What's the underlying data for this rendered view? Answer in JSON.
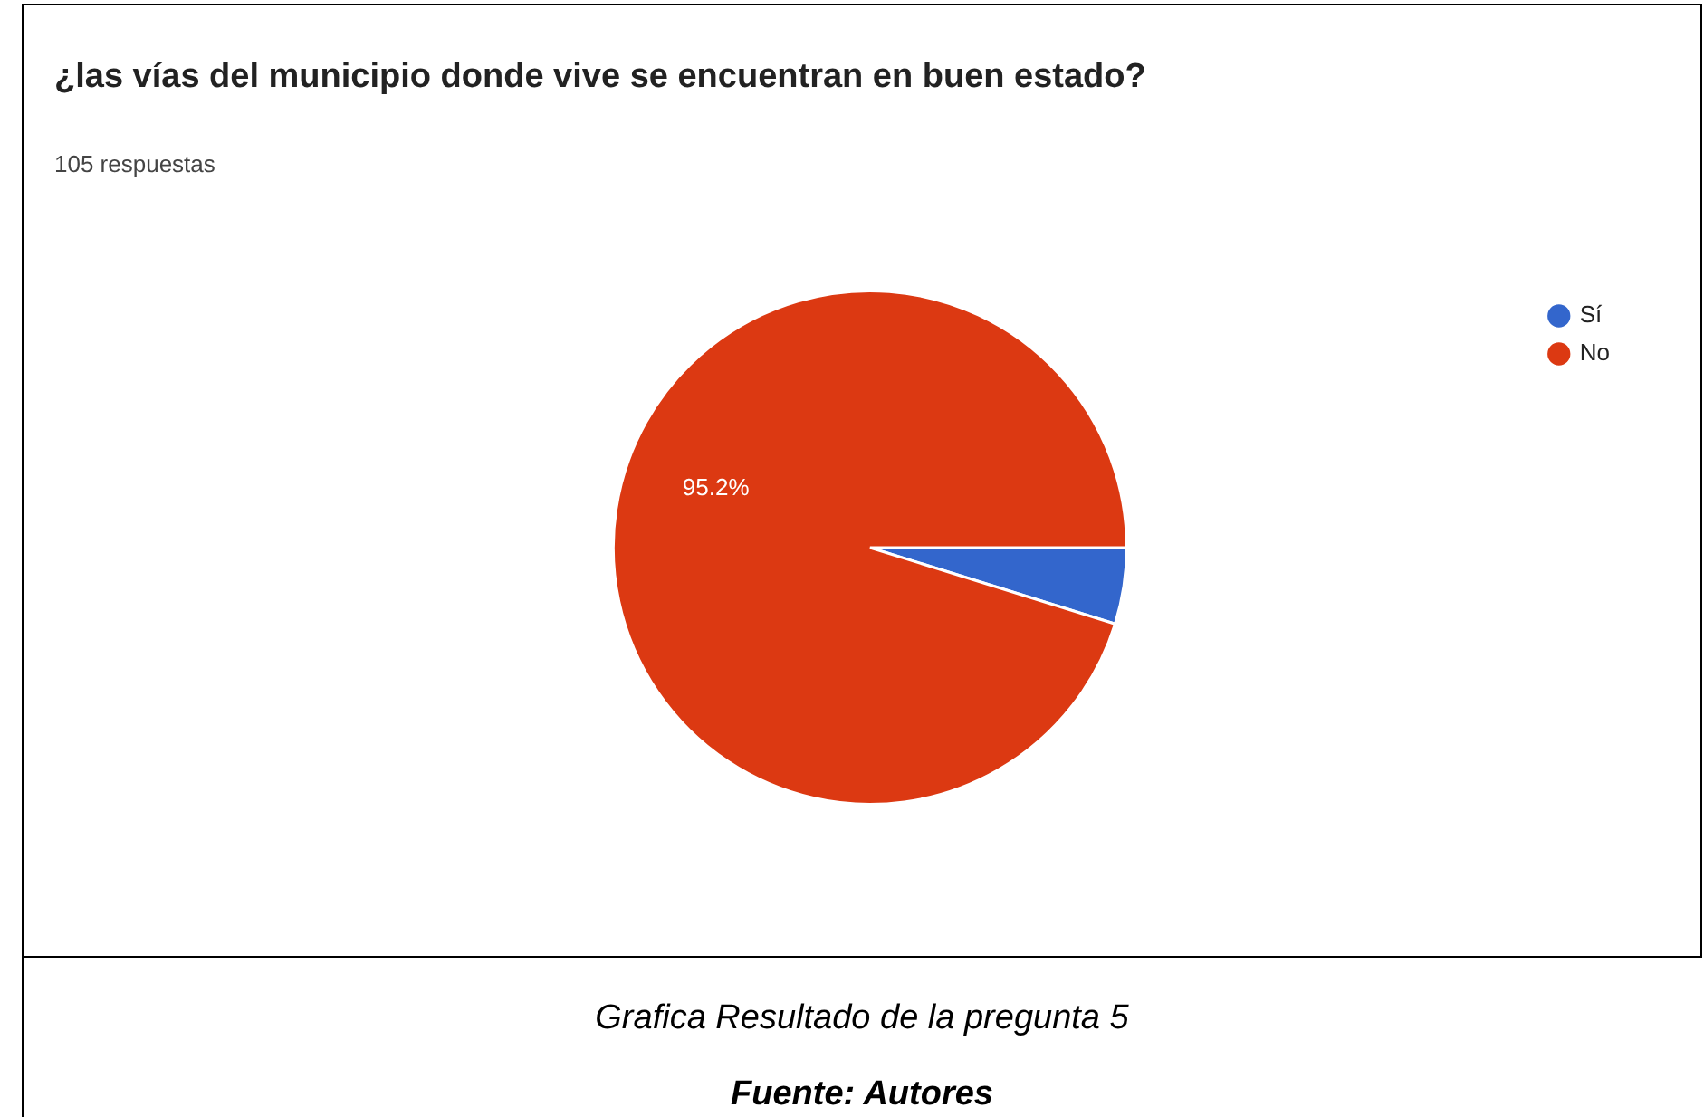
{
  "chart_data": {
    "type": "pie",
    "title": "¿las vías del municipio donde vive se encuentran en buen estado?",
    "subtitle": "105 respuestas",
    "categories": [
      "Sí",
      "No"
    ],
    "values": [
      4.8,
      95.2
    ],
    "colors": [
      "#3366cc",
      "#dc3912"
    ],
    "value_labels": [
      null,
      "95.2%"
    ],
    "legend": "top right",
    "annotations": [
      "Grafica Resultado de la pregunta 5",
      "Fuente: Autores"
    ]
  }
}
